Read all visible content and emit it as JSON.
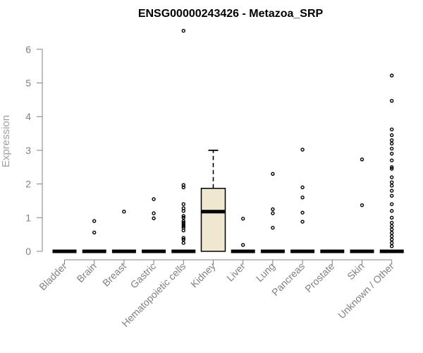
{
  "chart_data": {
    "type": "box",
    "title": "ENSG00000243426 - Metazoa_SRP",
    "xlabel": "",
    "ylabel": "Expression",
    "ylim": [
      0,
      6.5
    ],
    "yticks": [
      0,
      1,
      2,
      3,
      4,
      5,
      6
    ],
    "grid": false,
    "box_fill": "#efe8cf",
    "categories": [
      "Bladder",
      "Brain",
      "Breast",
      "Gastric",
      "Hematopoietic cells",
      "Kidney",
      "Liver",
      "Lung",
      "Pancreas",
      "Prostate",
      "Skin",
      "Unknown / Other"
    ],
    "boxes": [
      {
        "q1": 0,
        "median": 0,
        "q3": 0,
        "whisker_low": 0,
        "whisker_high": 0,
        "outliers": []
      },
      {
        "q1": 0,
        "median": 0,
        "q3": 0,
        "whisker_low": 0,
        "whisker_high": 0,
        "outliers": [
          0.56,
          0.9
        ]
      },
      {
        "q1": 0,
        "median": 0,
        "q3": 0,
        "whisker_low": 0,
        "whisker_high": 0,
        "outliers": [
          1.18
        ]
      },
      {
        "q1": 0,
        "median": 0,
        "q3": 0,
        "whisker_low": 0,
        "whisker_high": 0,
        "outliers": [
          0.98,
          1.13,
          1.55
        ]
      },
      {
        "q1": 0,
        "median": 0,
        "q3": 0,
        "whisker_low": 0,
        "whisker_high": 0,
        "outliers": [
          0.25,
          0.35,
          0.4,
          0.62,
          0.7,
          0.75,
          0.8,
          0.85,
          0.9,
          1.0,
          1.05,
          1.2,
          1.28,
          1.4,
          1.9,
          1.97,
          6.55
        ]
      },
      {
        "q1": 0,
        "median": 1.18,
        "q3": 1.87,
        "whisker_low": 0,
        "whisker_high": 3.0,
        "outliers": []
      },
      {
        "q1": 0,
        "median": 0,
        "q3": 0,
        "whisker_low": 0,
        "whisker_high": 0,
        "outliers": [
          0.19,
          0.97
        ]
      },
      {
        "q1": 0,
        "median": 0,
        "q3": 0,
        "whisker_low": 0,
        "whisker_high": 0,
        "outliers": [
          0.7,
          1.13,
          1.25,
          2.3
        ]
      },
      {
        "q1": 0,
        "median": 0,
        "q3": 0,
        "whisker_low": 0,
        "whisker_high": 0,
        "outliers": [
          0.88,
          1.15,
          1.6,
          1.9,
          3.02
        ]
      },
      {
        "q1": 0,
        "median": 0,
        "q3": 0,
        "whisker_low": 0,
        "whisker_high": 0,
        "outliers": []
      },
      {
        "q1": 0,
        "median": 0,
        "q3": 0,
        "whisker_low": 0,
        "whisker_high": 0,
        "outliers": [
          1.37,
          2.73
        ]
      },
      {
        "q1": 0,
        "median": 0,
        "q3": 0,
        "whisker_low": 0,
        "whisker_high": 0,
        "outliers": [
          0.15,
          0.25,
          0.35,
          0.45,
          0.55,
          0.65,
          0.75,
          0.85,
          1.0,
          1.2,
          1.4,
          1.65,
          1.8,
          1.95,
          2.05,
          2.2,
          2.45,
          2.5,
          2.7,
          2.9,
          3.05,
          3.2,
          3.3,
          3.45,
          3.62,
          4.47,
          5.22
        ]
      }
    ]
  }
}
